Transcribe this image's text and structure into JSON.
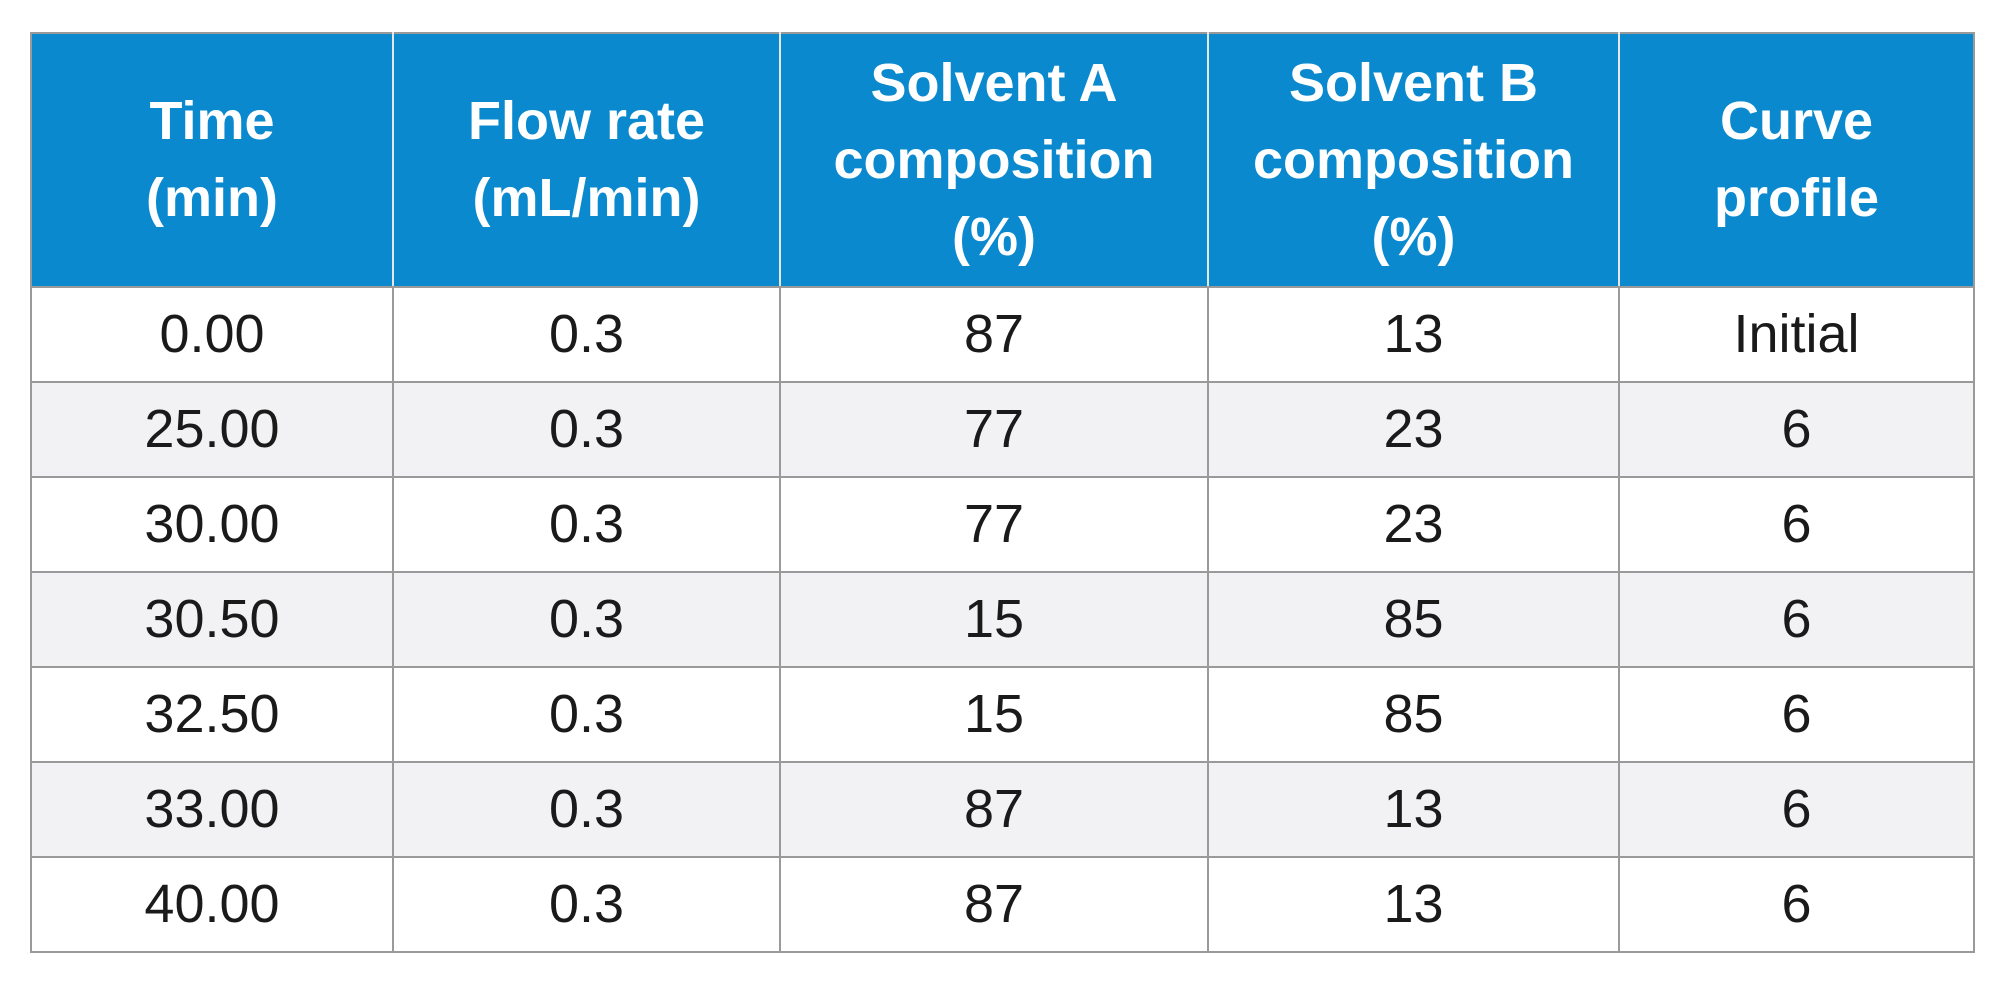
{
  "table": {
    "headers": [
      "Time\n(min)",
      "Flow rate\n(mL/min)",
      "Solvent A\ncomposition\n(%)",
      "Solvent B\ncomposition\n(%)",
      "Curve\nprofile"
    ],
    "rows": [
      [
        "0.00",
        "0.3",
        "87",
        "13",
        "Initial"
      ],
      [
        "25.00",
        "0.3",
        "77",
        "23",
        "6"
      ],
      [
        "30.00",
        "0.3",
        "77",
        "23",
        "6"
      ],
      [
        "30.50",
        "0.3",
        "15",
        "85",
        "6"
      ],
      [
        "32.50",
        "0.3",
        "15",
        "85",
        "6"
      ],
      [
        "33.00",
        "0.3",
        "87",
        "13",
        "6"
      ],
      [
        "40.00",
        "0.3",
        "87",
        "13",
        "6"
      ]
    ]
  },
  "colors": {
    "header_background": "#0a89cf",
    "header_text": "#ffffff",
    "row_alt_background": "#f2f2f4",
    "border": "#9a9a9a"
  }
}
